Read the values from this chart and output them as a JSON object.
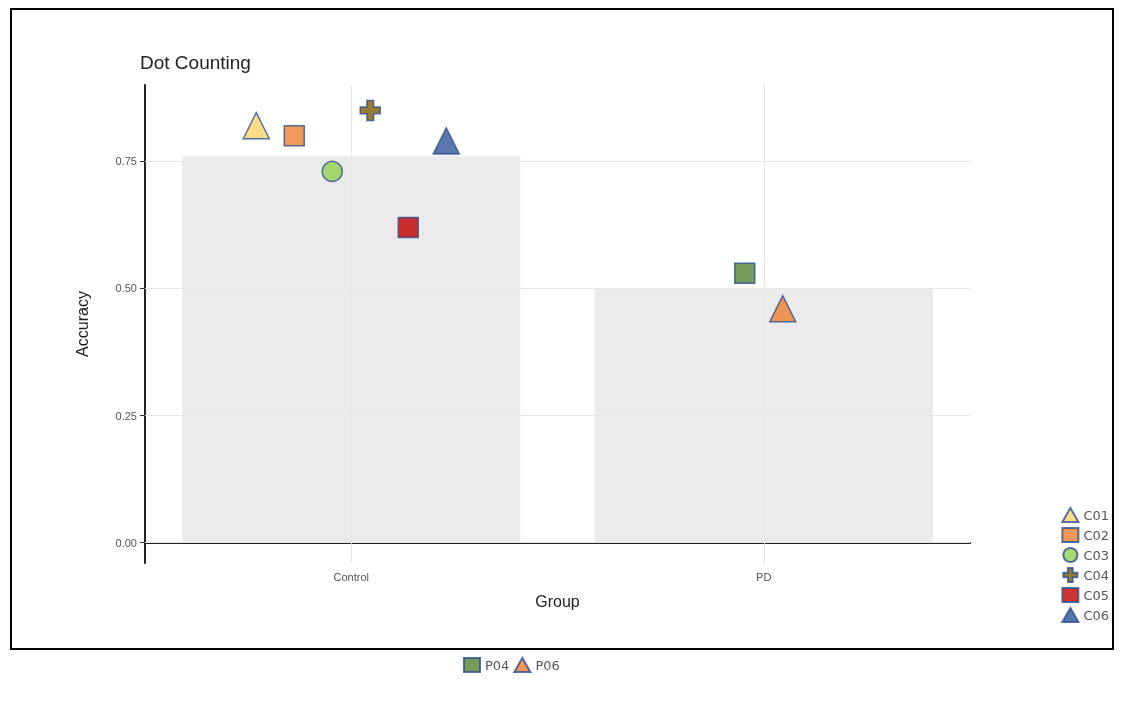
{
  "chart_data": {
    "type": "bar",
    "title": "Dot Counting",
    "xlabel": "Group",
    "ylabel": "Accuracy",
    "categories": [
      "Control",
      "PD"
    ],
    "values": [
      0.76,
      0.5
    ],
    "color": "#ebebeb",
    "ylim": [
      -0.04,
      0.9
    ],
    "yticks": [
      {
        "value": 0,
        "label": "0.00"
      },
      0.25,
      {
        "value": 0.5,
        "label": "0.50"
      },
      0.75
    ],
    "grid": true,
    "legend": "bottom right",
    "series": [
      {
        "name": "C01",
        "type": "scatter",
        "marker": "triangle",
        "color": "#fdd56a",
        "x": [
          "Control"
        ],
        "values": [
          0.82
        ]
      },
      {
        "name": "C02",
        "type": "scatter",
        "marker": "square",
        "color": "#ef7f31",
        "x": [
          "Control"
        ],
        "values": [
          0.8
        ]
      },
      {
        "name": "C03",
        "type": "scatter",
        "marker": "circle",
        "color": "#8fcf4f",
        "x": [
          "Control"
        ],
        "values": [
          0.73
        ]
      },
      {
        "name": "C04",
        "type": "scatter",
        "marker": "cross",
        "color": "#7a5a00",
        "x": [
          "Control"
        ],
        "values": [
          0.85
        ]
      },
      {
        "name": "C05",
        "type": "scatter",
        "marker": "square",
        "color": "#c00000",
        "x": [
          "Control"
        ],
        "values": [
          0.62
        ]
      },
      {
        "name": "C06",
        "type": "scatter",
        "marker": "triangle",
        "color": "#2f5597",
        "x": [
          "Control"
        ],
        "values": [
          0.79
        ]
      },
      {
        "name": "P04",
        "type": "scatter",
        "marker": "square",
        "color": "#548235",
        "x": [
          "PD"
        ],
        "values": [
          0.53
        ]
      },
      {
        "name": "P06",
        "type": "scatter",
        "marker": "triangle",
        "color": "#ed7d31",
        "x": [
          "PD"
        ],
        "values": [
          0.46
        ]
      }
    ]
  }
}
